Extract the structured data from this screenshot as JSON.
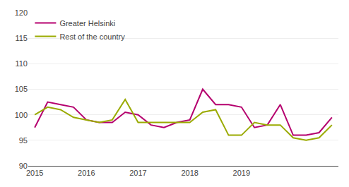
{
  "chart_data": {
    "type": "line",
    "categories": [
      "2015",
      null,
      null,
      null,
      "2016",
      null,
      null,
      null,
      "2017",
      null,
      null,
      null,
      "2018",
      null,
      null,
      null,
      "2019",
      null,
      null,
      null,
      null,
      null,
      null,
      null
    ],
    "series": [
      {
        "name": "Greater Helsinki",
        "color": "#b5006e",
        "values": [
          97.5,
          102.5,
          102.0,
          101.5,
          99.0,
          98.5,
          98.5,
          100.5,
          100.0,
          98.0,
          97.5,
          98.5,
          99.0,
          105.0,
          102.0,
          102.0,
          101.5,
          97.5,
          98.0,
          102.0,
          96.0,
          96.0,
          96.5,
          99.5
        ]
      },
      {
        "name": "Rest of the country",
        "color": "#9aaa00",
        "values": [
          100.0,
          101.5,
          101.0,
          99.5,
          99.0,
          98.5,
          99.0,
          103.0,
          98.5,
          98.5,
          98.5,
          98.5,
          98.5,
          100.5,
          101.0,
          96.0,
          96.0,
          98.5,
          98.0,
          98.0,
          95.5,
          95.0,
          95.5,
          98.0
        ]
      }
    ],
    "ylim": [
      90,
      120
    ],
    "yticks": [
      90,
      95,
      100,
      105,
      110,
      115,
      120
    ],
    "grid": true,
    "legend": "upper left"
  }
}
